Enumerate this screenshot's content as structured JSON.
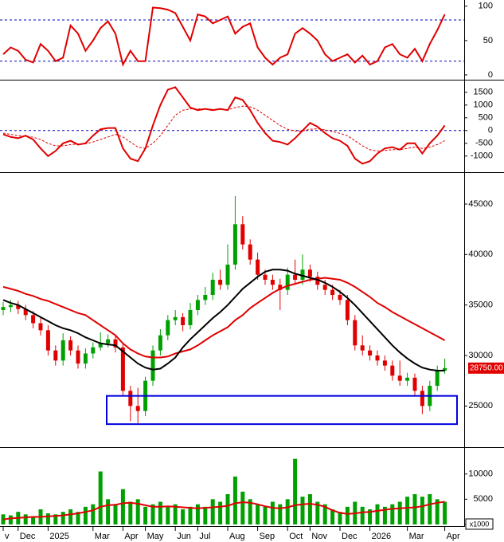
{
  "chart_data": [
    {
      "type": "line",
      "ylim": [
        -7,
        109
      ],
      "yticks": [
        0,
        50,
        100
      ],
      "ref_lines": [
        80,
        20
      ],
      "ref_color": "#0000c0",
      "series": [
        {
          "color": "#e00000",
          "values": [
            30,
            40,
            35,
            22,
            18,
            45,
            35,
            20,
            25,
            72,
            60,
            35,
            50,
            68,
            78,
            60,
            15,
            35,
            20,
            20,
            98,
            97,
            95,
            90,
            70,
            50,
            88,
            85,
            75,
            80,
            85,
            60,
            70,
            75,
            40,
            25,
            15,
            25,
            30,
            60,
            68,
            60,
            50,
            30,
            20,
            25,
            30,
            18,
            28,
            15,
            20,
            40,
            45,
            30,
            25,
            38,
            20,
            45,
            65,
            88
          ]
        }
      ]
    },
    {
      "type": "line",
      "ylim": [
        -1600,
        1900
      ],
      "yticks": [
        -1000,
        -500,
        0,
        500,
        1000,
        1500
      ],
      "ref_lines": [
        0
      ],
      "ref_color": "#0000c0",
      "series": [
        {
          "color": "#e00000",
          "values": [
            -150,
            -250,
            -300,
            -200,
            -350,
            -700,
            -1000,
            -800,
            -500,
            -400,
            -550,
            -500,
            -200,
            50,
            100,
            100,
            -700,
            -1100,
            -1200,
            -700,
            200,
            1000,
            1600,
            1700,
            1300,
            900,
            800,
            850,
            800,
            850,
            800,
            1300,
            1200,
            800,
            300,
            -100,
            -400,
            -450,
            -550,
            -300,
            0,
            300,
            150,
            -100,
            -300,
            -400,
            -600,
            -1100,
            -1300,
            -1200,
            -900,
            -700,
            -650,
            -750,
            -500,
            -500,
            -900,
            -500,
            -200,
            200
          ]
        },
        {
          "color": "#e00000",
          "style": "dashed",
          "values": [
            -100,
            -150,
            -200,
            -220,
            -260,
            -350,
            -500,
            -600,
            -600,
            -550,
            -530,
            -520,
            -450,
            -350,
            -250,
            -150,
            -250,
            -450,
            -650,
            -700,
            -500,
            -200,
            200,
            600,
            800,
            850,
            850,
            850,
            830,
            830,
            820,
            900,
            960,
            930,
            800,
            600,
            400,
            200,
            50,
            -20,
            -20,
            50,
            70,
            30,
            -40,
            -110,
            -200,
            -400,
            -600,
            -750,
            -800,
            -780,
            -750,
            -750,
            -700,
            -650,
            -700,
            -650,
            -550,
            -400
          ]
        }
      ]
    },
    {
      "type": "candlestick",
      "ylim": [
        21000,
        48000
      ],
      "yticks": [
        25000,
        30000,
        35000,
        40000,
        45000
      ],
      "up_color": "#00a000",
      "down_color": "#e00000",
      "open": [
        34500,
        34800,
        35000,
        34600,
        34000,
        33200,
        32500,
        30500,
        29500,
        31500,
        30500,
        29200,
        30200,
        30800,
        31200,
        31600,
        30800,
        26500,
        25000,
        24500,
        27500,
        30500,
        32000,
        33500,
        33800,
        33000,
        34500,
        35500,
        36000,
        37500,
        37000,
        39000,
        43000,
        41000,
        39500,
        38000,
        37500,
        37000,
        36500,
        38000,
        37500,
        38500,
        37800,
        37000,
        36500,
        36000,
        35500,
        33500,
        31000,
        30500,
        30000,
        29500,
        29000,
        28000,
        27500,
        27800,
        26500,
        25000,
        27000,
        28500
      ],
      "high": [
        35300,
        35500,
        35400,
        35000,
        34400,
        33700,
        33000,
        31000,
        32200,
        31900,
        31000,
        30700,
        31300,
        32300,
        32100,
        32000,
        31200,
        27000,
        26800,
        27900,
        31000,
        32600,
        34000,
        34500,
        34200,
        35200,
        36000,
        36800,
        38200,
        38500,
        41000,
        45800,
        43800,
        41500,
        40200,
        38500,
        38000,
        37600,
        38700,
        39500,
        40000,
        39000,
        38300,
        37500,
        37000,
        36500,
        36000,
        34000,
        32000,
        31000,
        30500,
        30000,
        29500,
        29500,
        28300,
        28200,
        27000,
        27500,
        29000,
        29700
      ],
      "low": [
        34000,
        34300,
        34100,
        33500,
        32700,
        32000,
        30000,
        29000,
        29000,
        30000,
        28700,
        28700,
        29700,
        30500,
        30800,
        30300,
        26000,
        23500,
        23300,
        24000,
        27000,
        30000,
        31500,
        33000,
        32400,
        32600,
        34000,
        35000,
        35500,
        36500,
        36500,
        38500,
        40500,
        39000,
        37500,
        37000,
        36500,
        34500,
        36000,
        37000,
        37000,
        37300,
        36500,
        36000,
        35500,
        35000,
        33000,
        30500,
        30000,
        29500,
        29000,
        28500,
        27500,
        27000,
        27000,
        26000,
        24200,
        24500,
        26500,
        28200
      ],
      "close": [
        34800,
        35000,
        34600,
        34000,
        33200,
        32500,
        30500,
        29500,
        31500,
        30500,
        29200,
        30200,
        30800,
        31200,
        31600,
        30800,
        26500,
        25000,
        24500,
        27500,
        30500,
        32000,
        33500,
        33800,
        33000,
        34500,
        35500,
        36000,
        37500,
        37000,
        39000,
        43000,
        41000,
        39500,
        38000,
        37500,
        37000,
        36500,
        38000,
        37500,
        38500,
        37800,
        37000,
        36500,
        36000,
        35500,
        33500,
        31000,
        30500,
        30000,
        29500,
        29000,
        28000,
        27500,
        27800,
        26500,
        25000,
        27000,
        28500,
        28750
      ],
      "series": [
        {
          "color": "#e00000",
          "values": [
            36800,
            36600,
            36400,
            36100,
            35900,
            35600,
            35400,
            35100,
            34800,
            34500,
            34200,
            34000,
            33500,
            33000,
            32500,
            32000,
            31200,
            30600,
            30200,
            29900,
            29800,
            29800,
            29900,
            30200,
            30400,
            30600,
            31000,
            31500,
            32000,
            32400,
            32800,
            33500,
            34000,
            34700,
            35200,
            35700,
            36200,
            36600,
            36900,
            37100,
            37300,
            37500,
            37600,
            37700,
            37600,
            37500,
            37200,
            36800,
            36300,
            35800,
            35200,
            34800,
            34300,
            33900,
            33500,
            33100,
            32700,
            32300,
            31900,
            31500
          ]
        },
        {
          "color": "#000000",
          "values": [
            35500,
            35200,
            35000,
            34600,
            34200,
            33800,
            33400,
            33000,
            32700,
            32500,
            32200,
            31800,
            31500,
            31200,
            31100,
            31000,
            30400,
            29800,
            29200,
            28800,
            28600,
            28700,
            29200,
            29800,
            30800,
            31600,
            32300,
            33000,
            33700,
            34300,
            35000,
            35800,
            36600,
            37200,
            37800,
            38300,
            38500,
            38500,
            38400,
            38100,
            37900,
            37700,
            37500,
            37200,
            36800,
            36300,
            35700,
            35000,
            34200,
            33400,
            32600,
            31800,
            31000,
            30300,
            29700,
            29200,
            28800,
            28600,
            28500,
            28500
          ]
        }
      ],
      "last_price": {
        "value": 28750,
        "label": "28750.00"
      },
      "highlight_range": [
        23200,
        26000
      ],
      "highlight_color": "#0000e0"
    },
    {
      "type": "bar",
      "ylim": [
        0,
        15000
      ],
      "yticks": [
        0,
        5000,
        10000
      ],
      "color": "#00a000",
      "unit_label": "x1000",
      "categories": [
        "v",
        null,
        "Dec",
        null,
        null,
        null,
        "2025",
        null,
        null,
        null,
        null,
        null,
        "Mar",
        null,
        null,
        null,
        "Apr",
        null,
        null,
        "May",
        null,
        null,
        null,
        "Jun",
        null,
        null,
        "Jul",
        null,
        null,
        null,
        "Aug",
        null,
        null,
        null,
        "Sep",
        null,
        null,
        null,
        "Oct",
        null,
        null,
        "Nov",
        null,
        null,
        null,
        "Dec",
        null,
        null,
        null,
        "2026",
        null,
        null,
        null,
        null,
        "Mar",
        null,
        null,
        null,
        null,
        "Apr"
      ],
      "values": [
        2000,
        1800,
        2500,
        2000,
        1500,
        3000,
        2200,
        2000,
        2500,
        3000,
        2500,
        3500,
        4000,
        10500,
        5000,
        4000,
        7000,
        4500,
        5000,
        3500,
        4000,
        4500,
        3500,
        4000,
        3000,
        3500,
        4000,
        3500,
        5000,
        4500,
        6000,
        9500,
        6500,
        5000,
        4000,
        3500,
        4500,
        4000,
        5000,
        13000,
        5500,
        6000,
        4500,
        4000,
        3000,
        2500,
        3500,
        4500,
        3500,
        3000,
        4000,
        3500,
        4000,
        4500,
        5500,
        6000,
        5500,
        6000,
        5000,
        4500
      ],
      "series": [
        {
          "color": "#e00000",
          "values": [
            1000,
            1200,
            1300,
            1400,
            1500,
            1500,
            1600,
            1700,
            1800,
            2000,
            2200,
            2500,
            2800,
            3500,
            3800,
            3900,
            4200,
            4300,
            4100,
            3800,
            3500,
            3500,
            3600,
            3500,
            3400,
            3300,
            3200,
            3300,
            3400,
            3500,
            3700,
            4200,
            4400,
            4300,
            4000,
            3600,
            3300,
            3200,
            3400,
            3800,
            4000,
            4100,
            3900,
            3500,
            2800,
            2300,
            2100,
            2200,
            2400,
            2500,
            2700,
            2900,
            3100,
            3200,
            3300,
            3400,
            3600,
            4000,
            4300,
            4500
          ]
        }
      ]
    }
  ]
}
